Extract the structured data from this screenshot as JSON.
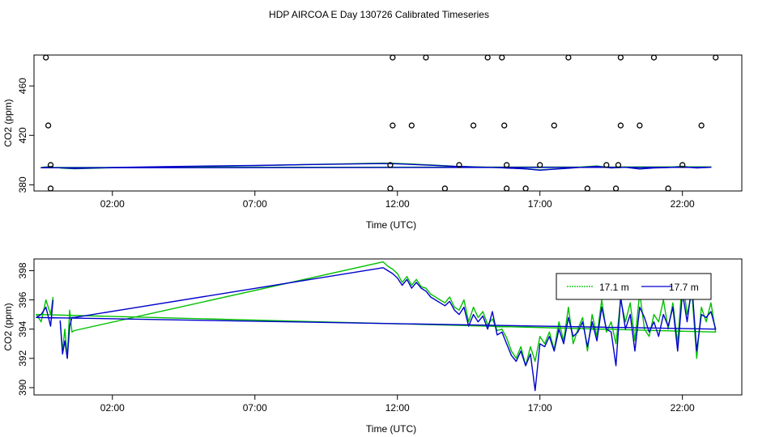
{
  "title": "HDP AIRCOA E  Day 130726  Calibrated Timeseries",
  "colors": {
    "green": "#00c000",
    "blue": "#0000cc",
    "markers": "#000000"
  },
  "chart_data": [
    {
      "type": "line",
      "xlabel": "Time (UTC)",
      "ylabel": "CO2 (ppm)",
      "xlim": [
        "23:15",
        "24:05"
      ],
      "ylim": [
        375,
        485
      ],
      "xticks": [
        "02:00",
        "07:00",
        "12:00",
        "17:00",
        "22:00"
      ],
      "yticks": [
        "380",
        "420",
        "460"
      ],
      "grid": false,
      "legend": "none",
      "series": [
        {
          "color": "green",
          "x": [
            "00:10",
            "00:40",
            "02:00",
            "04:00",
            "07:00",
            "09:00",
            "11:30",
            "12:00",
            "12:30",
            "13:00",
            "13:30",
            "14:00",
            "14:30",
            "15:00",
            "15:30",
            "16:00",
            "16:30",
            "17:00",
            "17:30",
            "18:00",
            "18:30",
            "19:00",
            "19:30",
            "20:00",
            "20:30",
            "21:00",
            "21:30",
            "22:00",
            "22:30",
            "23:00",
            "23:30",
            "23:55"
          ],
          "y": [
            393.5,
            393.0,
            393.8,
            394.5,
            395.5,
            396.5,
            397.5,
            397.3,
            396.8,
            396.2,
            395.6,
            395.0,
            394.7,
            394.3,
            394.0,
            393.5,
            393.0,
            392.0,
            392.8,
            393.5,
            394.5,
            395.2,
            393.8,
            394.5,
            393.0,
            393.8,
            394.2,
            395.0,
            393.8,
            394.5,
            394.0,
            395.0
          ]
        },
        {
          "color": "blue",
          "x": [
            "00:10",
            "00:40",
            "02:00",
            "04:00",
            "07:00",
            "09:00",
            "11:30",
            "12:00",
            "12:30",
            "13:00",
            "13:30",
            "14:00",
            "14:30",
            "15:00",
            "15:30",
            "16:00",
            "16:30",
            "17:00",
            "17:30",
            "18:00",
            "18:30",
            "19:00",
            "19:30",
            "20:00",
            "20:30",
            "21:00",
            "21:30",
            "22:00",
            "22:30",
            "23:00",
            "23:30",
            "23:55"
          ],
          "y": [
            393.8,
            393.2,
            394.0,
            394.8,
            395.6,
            396.4,
            397.2,
            397.0,
            396.5,
            396.0,
            395.5,
            394.9,
            394.6,
            394.2,
            393.9,
            393.4,
            392.9,
            391.8,
            392.6,
            393.4,
            394.2,
            394.9,
            393.6,
            394.2,
            392.8,
            393.6,
            394.0,
            394.6,
            393.6,
            394.2,
            393.8,
            394.8
          ]
        }
      ],
      "markers": {
        "shape": "circle",
        "points": [
          {
            "x": "11:50",
            "y": 483
          },
          {
            "x": "13:00",
            "y": 483
          },
          {
            "x": "15:10",
            "y": 483
          },
          {
            "x": "15:40",
            "y": 483
          },
          {
            "x": "18:00",
            "y": 483
          },
          {
            "x": "19:50",
            "y": 483
          },
          {
            "x": "21:00",
            "y": 483
          },
          {
            "x": "23:10",
            "y": 483
          },
          {
            "x": "23:40",
            "y": 483
          },
          {
            "x": "11:50",
            "y": 428
          },
          {
            "x": "12:30",
            "y": 428
          },
          {
            "x": "14:40",
            "y": 428
          },
          {
            "x": "15:45",
            "y": 428
          },
          {
            "x": "17:30",
            "y": 428
          },
          {
            "x": "19:50",
            "y": 428
          },
          {
            "x": "20:30",
            "y": 428
          },
          {
            "x": "22:40",
            "y": 428
          },
          {
            "x": "23:45",
            "y": 428
          },
          {
            "x": "11:45",
            "y": 396
          },
          {
            "x": "14:10",
            "y": 396
          },
          {
            "x": "15:50",
            "y": 396
          },
          {
            "x": "17:00",
            "y": 396
          },
          {
            "x": "19:20",
            "y": 396
          },
          {
            "x": "19:45",
            "y": 396
          },
          {
            "x": "22:00",
            "y": 396
          },
          {
            "x": "23:50",
            "y": 396
          },
          {
            "x": "11:45",
            "y": 377
          },
          {
            "x": "13:40",
            "y": 377
          },
          {
            "x": "15:50",
            "y": 377
          },
          {
            "x": "16:30",
            "y": 377
          },
          {
            "x": "18:40",
            "y": 377
          },
          {
            "x": "19:40",
            "y": 377
          },
          {
            "x": "21:30",
            "y": 377
          },
          {
            "x": "23:50",
            "y": 377
          }
        ]
      }
    },
    {
      "type": "line",
      "xlabel": "Time (UTC)",
      "ylabel": "CO2 (ppm)",
      "xlim": [
        "23:15",
        "24:05"
      ],
      "ylim": [
        389.5,
        398.8
      ],
      "xticks": [
        "02:00",
        "07:00",
        "12:00",
        "17:00",
        "22:00"
      ],
      "yticks": [
        "390",
        "392",
        "394",
        "396",
        "398"
      ],
      "grid": false,
      "legend": "top-right",
      "series": [
        {
          "name": "17.1 m",
          "color": "green",
          "x": [
            "00:10",
            "00:15",
            "00:20",
            "00:25",
            "00:30",
            "00:35",
            "00:40",
            "11:30",
            "11:40",
            "11:50",
            "12:00",
            "12:10",
            "12:20",
            "12:30",
            "12:40",
            "12:50",
            "13:00",
            "13:10",
            "13:20",
            "13:30",
            "13:40",
            "13:50",
            "14:00",
            "14:10",
            "14:20",
            "14:30",
            "14:40",
            "14:50",
            "15:00",
            "15:10",
            "15:20",
            "15:30",
            "15:40",
            "15:50",
            "16:00",
            "16:10",
            "16:20",
            "16:30",
            "16:40",
            "16:50",
            "17:00",
            "17:10",
            "17:20",
            "17:30",
            "17:40",
            "17:50",
            "18:00",
            "18:10",
            "18:20",
            "18:30",
            "18:40",
            "18:50",
            "19:00",
            "19:10",
            "19:20",
            "19:30",
            "19:40",
            "19:50",
            "20:00",
            "20:10",
            "20:20",
            "20:30",
            "20:40",
            "20:50",
            "21:00",
            "21:10",
            "21:20",
            "21:30",
            "21:40",
            "21:50",
            "22:00",
            "22:10",
            "22:20",
            "22:30",
            "22:40",
            "22:50",
            "23:00",
            "23:10",
            "23:20",
            "23:30",
            "23:40",
            "23:50",
            "23:55"
          ],
          "y": [
            394.5,
            392.5,
            394.0,
            392.0,
            395.3,
            393.8,
            393.9,
            398.6,
            398.3,
            398.1,
            397.8,
            397.2,
            397.6,
            397.0,
            397.4,
            396.9,
            396.8,
            396.4,
            396.2,
            396.0,
            395.8,
            396.2,
            395.5,
            395.3,
            396.0,
            394.5,
            395.5,
            394.8,
            395.2,
            394.3,
            394.7,
            393.9,
            394.0,
            393.4,
            392.5,
            392.0,
            392.8,
            391.5,
            392.8,
            391.8,
            393.5,
            393.0,
            393.8,
            392.6,
            394.5,
            393.2,
            395.5,
            393.0,
            394.0,
            394.8,
            392.5,
            395.0,
            393.5,
            396.0,
            393.8,
            394.5,
            393.0,
            396.0,
            394.5,
            395.8,
            393.2,
            396.5,
            394.0,
            393.5,
            395.0,
            394.5,
            396.0,
            394.0,
            395.8,
            393.0,
            397.5,
            395.0,
            396.5,
            392.0,
            395.5,
            394.5,
            395.8,
            393.8,
            395.0,
            394.5,
            396.0,
            395.0,
            396.2
          ]
        },
        {
          "name": "17.7 m",
          "color": "blue",
          "x": [
            "00:10",
            "00:15",
            "00:20",
            "00:25",
            "00:30",
            "00:35",
            "00:40",
            "11:30",
            "11:40",
            "11:50",
            "12:00",
            "12:10",
            "12:20",
            "12:30",
            "12:40",
            "12:50",
            "13:00",
            "13:10",
            "13:20",
            "13:30",
            "13:40",
            "13:50",
            "14:00",
            "14:10",
            "14:20",
            "14:30",
            "14:40",
            "14:50",
            "15:00",
            "15:10",
            "15:20",
            "15:30",
            "15:40",
            "15:50",
            "16:00",
            "16:10",
            "16:20",
            "16:30",
            "16:40",
            "16:50",
            "17:00",
            "17:10",
            "17:20",
            "17:30",
            "17:40",
            "17:50",
            "18:00",
            "18:10",
            "18:20",
            "18:30",
            "18:40",
            "18:50",
            "19:00",
            "19:10",
            "19:20",
            "19:30",
            "19:40",
            "19:50",
            "20:00",
            "20:10",
            "20:20",
            "20:30",
            "20:40",
            "20:50",
            "21:00",
            "21:10",
            "21:20",
            "21:30",
            "21:40",
            "21:50",
            "22:00",
            "22:10",
            "22:20",
            "22:30",
            "22:40",
            "22:50",
            "23:00",
            "23:10",
            "23:20",
            "23:30",
            "23:40",
            "23:50",
            "23:55"
          ],
          "y": [
            394.6,
            392.3,
            393.2,
            392.0,
            394.2,
            394.8,
            394.8,
            398.2,
            398.0,
            397.8,
            397.5,
            397.0,
            397.4,
            396.8,
            397.2,
            396.8,
            396.6,
            396.2,
            396.0,
            395.8,
            395.6,
            395.9,
            395.3,
            395.0,
            395.5,
            394.2,
            395.0,
            394.5,
            394.9,
            394.0,
            395.2,
            393.6,
            393.8,
            393.0,
            392.2,
            391.8,
            392.5,
            391.5,
            392.3,
            389.8,
            393.0,
            392.8,
            393.5,
            392.5,
            394.0,
            393.0,
            394.8,
            393.5,
            393.8,
            394.5,
            392.8,
            394.5,
            393.2,
            395.5,
            394.0,
            393.8,
            391.5,
            396.2,
            394.0,
            395.0,
            392.5,
            395.5,
            394.8,
            393.8,
            394.5,
            393.5,
            395.0,
            394.2,
            395.5,
            392.5,
            396.5,
            394.5,
            397.0,
            392.5,
            395.0,
            394.8,
            395.2,
            394.0,
            394.8,
            395.0,
            395.5,
            394.2,
            396.0
          ]
        }
      ]
    }
  ]
}
